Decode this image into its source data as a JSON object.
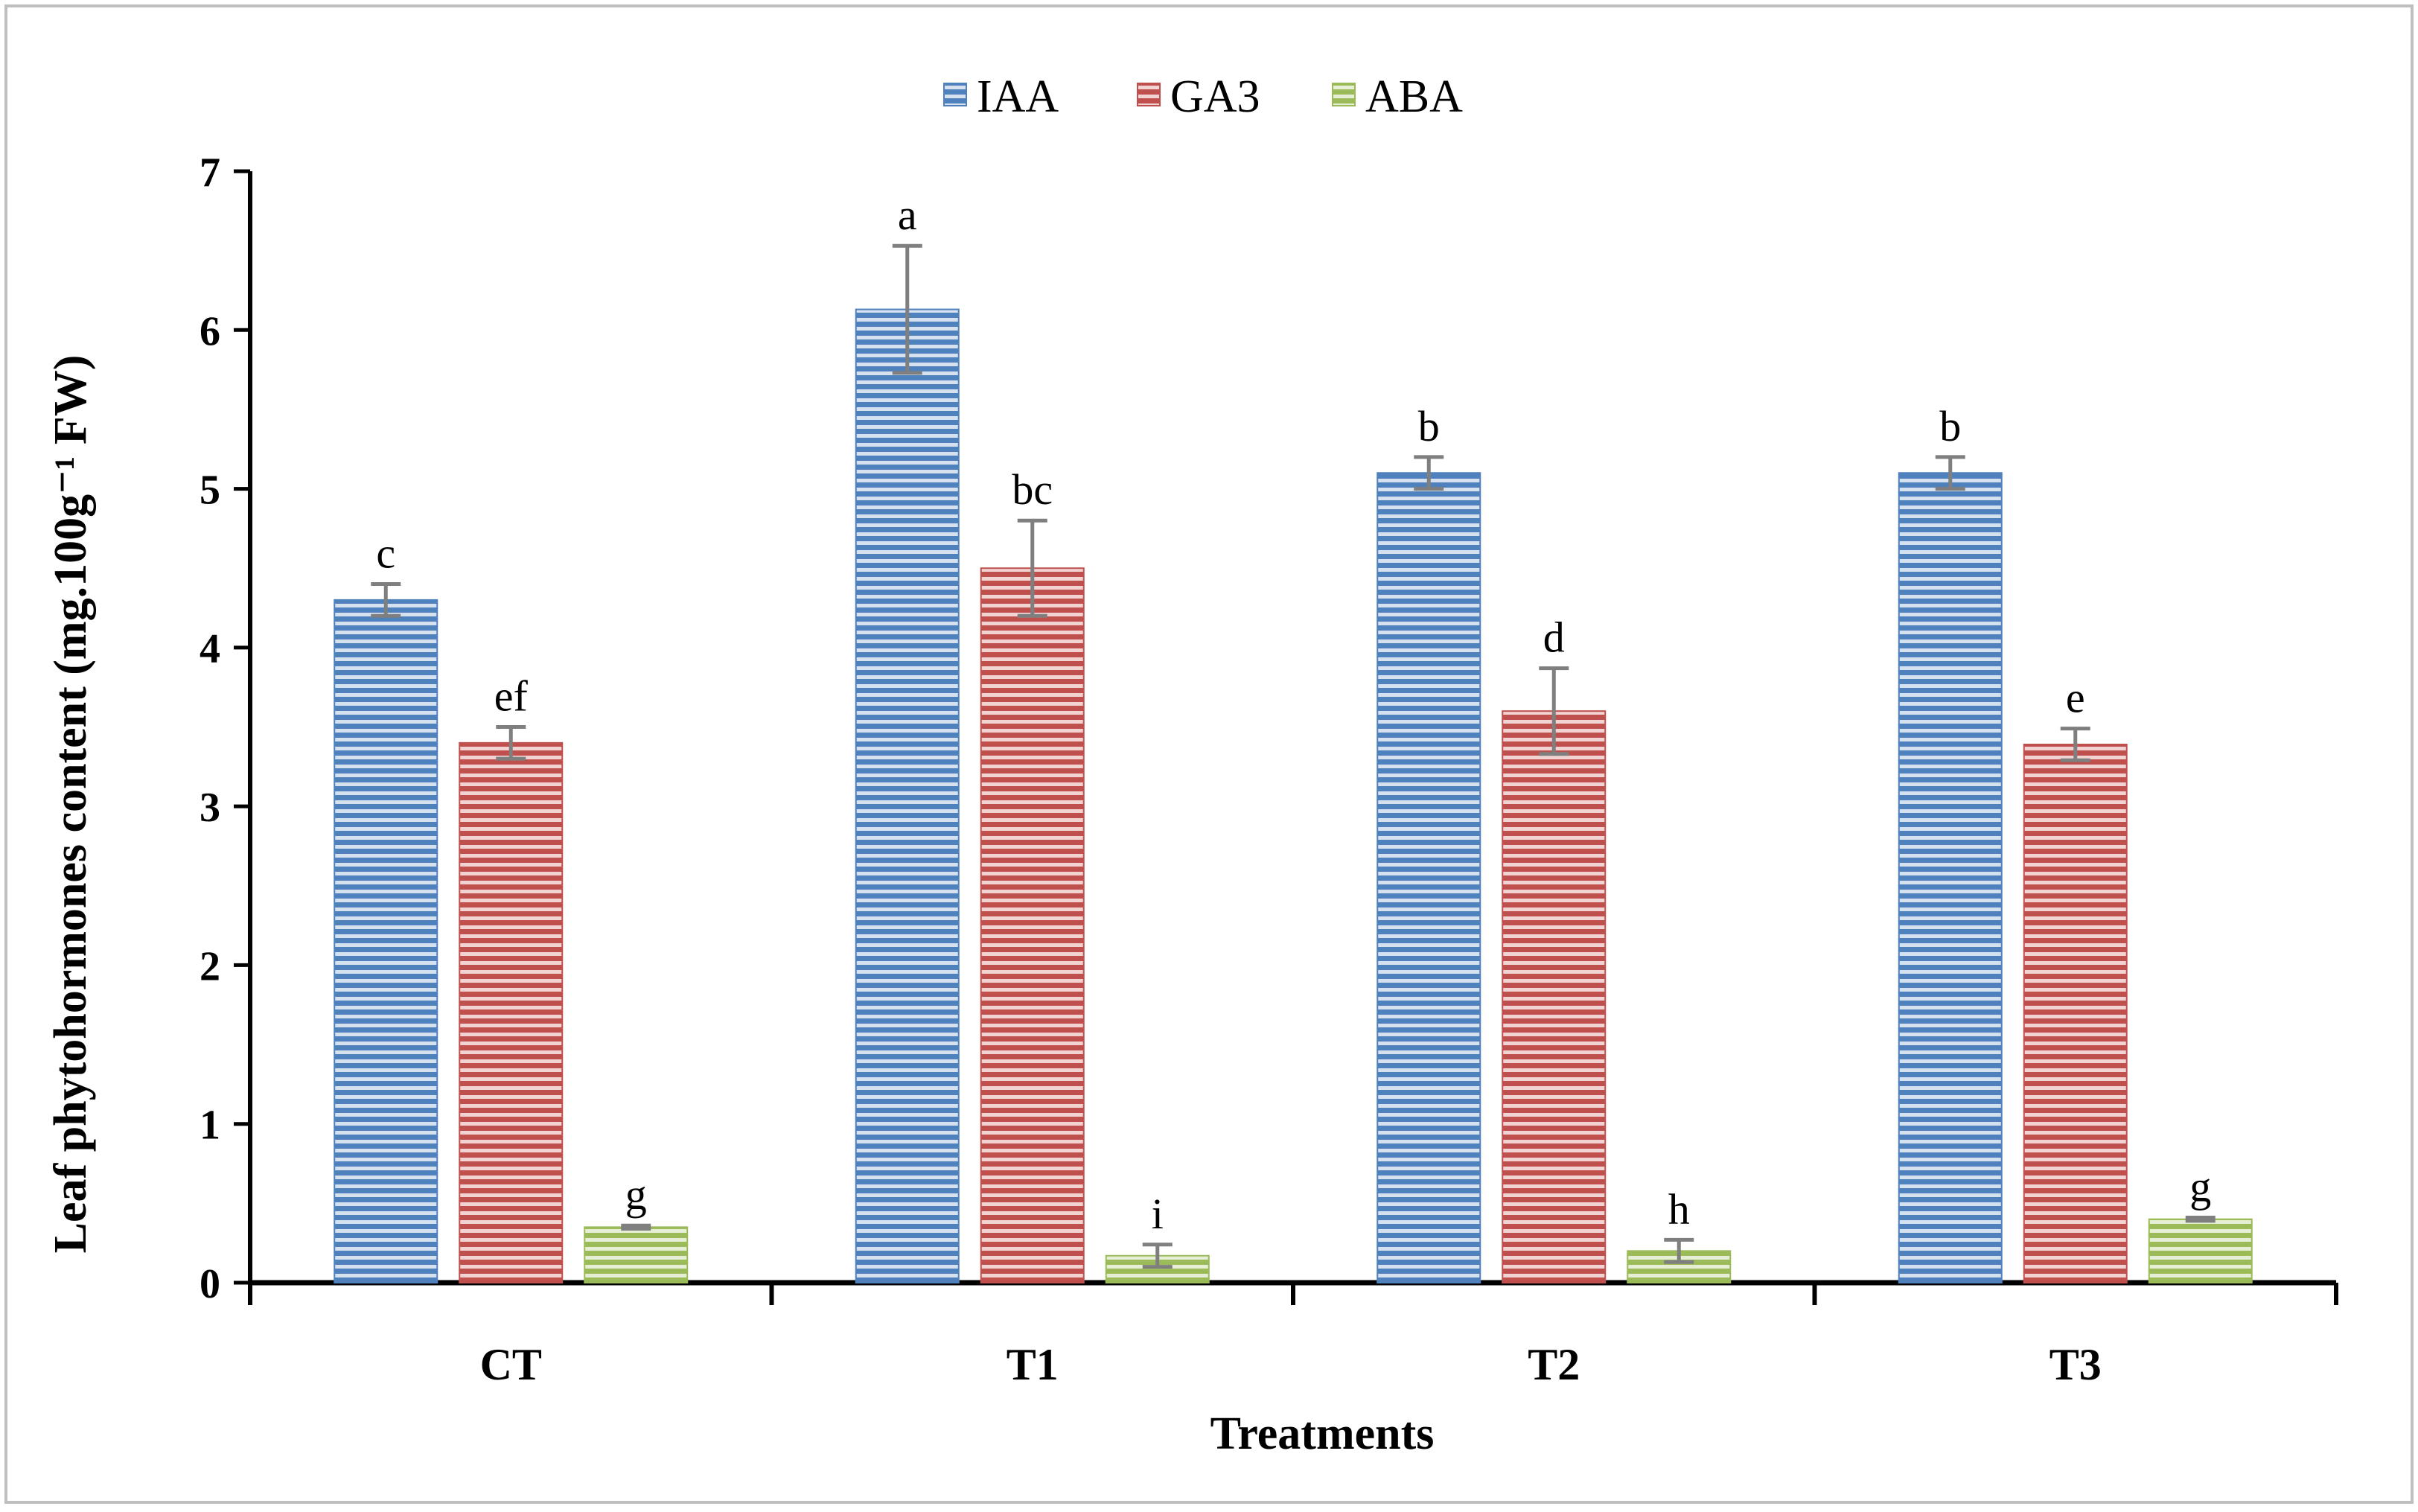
{
  "chart_data": {
    "type": "bar",
    "categories": [
      "CT",
      "T1",
      "T2",
      "T3"
    ],
    "series": [
      {
        "name": "IAA",
        "color": "#4f81bd",
        "values": [
          4.3,
          6.13,
          5.1,
          5.1
        ],
        "errors": [
          0.1,
          0.4,
          0.1,
          0.1
        ],
        "labels": [
          "c",
          "a",
          "b",
          "b"
        ]
      },
      {
        "name": "GA3",
        "color": "#c0504d",
        "values": [
          3.4,
          4.5,
          3.6,
          3.39
        ],
        "errors": [
          0.1,
          0.3,
          0.27,
          0.1
        ],
        "labels": [
          "ef",
          "bc",
          "d",
          "e"
        ]
      },
      {
        "name": "ABA",
        "color": "#9bbb59",
        "values": [
          0.35,
          0.17,
          0.2,
          0.4
        ],
        "errors": [
          0.01,
          0.07,
          0.07,
          0.01
        ],
        "labels": [
          "g",
          "i",
          "h",
          "g"
        ]
      }
    ],
    "xlabel": "Treatments",
    "ylabel": "Leaf phytohormones content (mg.100g⁻¹ FW)",
    "ylim": [
      0,
      7
    ],
    "yticks": [
      "0",
      "1",
      "2",
      "3",
      "4",
      "5",
      "6",
      "7"
    ],
    "grid": false,
    "legend_position": "top-center"
  }
}
